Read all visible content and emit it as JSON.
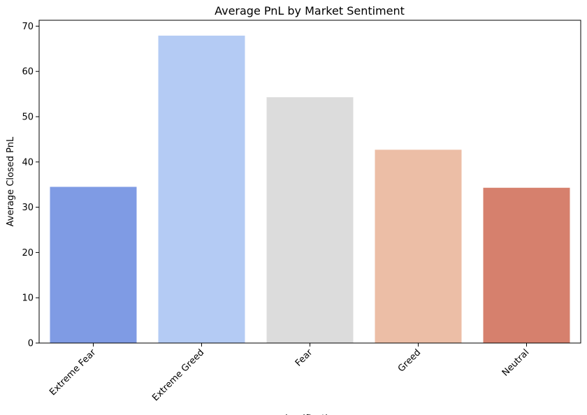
{
  "chart_data": {
    "type": "bar",
    "title": "Average PnL by Market Sentiment",
    "xlabel": "classification",
    "ylabel": "Average Closed PnL",
    "categories": [
      "Extreme Fear",
      "Extreme Greed",
      "Fear",
      "Greed",
      "Neutral"
    ],
    "values": [
      34.5,
      67.9,
      54.3,
      42.7,
      34.3
    ],
    "colors": [
      "#7f9be4",
      "#b4cbf4",
      "#dcdcdc",
      "#ecbea6",
      "#d6806d"
    ],
    "ylim": [
      0,
      71.3
    ],
    "yticks": [
      0,
      10,
      20,
      30,
      40,
      50,
      60,
      70
    ],
    "grid": false,
    "legend": "none"
  }
}
